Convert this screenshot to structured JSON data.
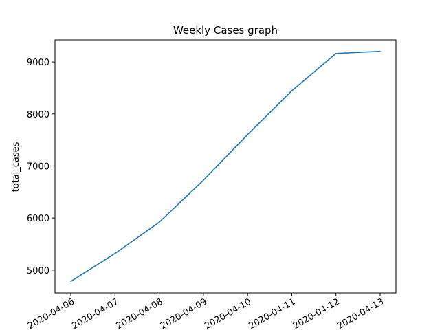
{
  "chart_data": {
    "type": "line",
    "title": "Weekly Cases graph",
    "xlabel": "",
    "ylabel": "total_cases",
    "x": [
      "2020-04-06",
      "2020-04-07",
      "2020-04-08",
      "2020-04-09",
      "2020-04-10",
      "2020-04-11",
      "2020-04-12",
      "2020-04-13"
    ],
    "series": [
      {
        "values": [
          4782,
          5318,
          5918,
          6725,
          7603,
          8445,
          9163,
          9203
        ],
        "color": "#1f77b4"
      }
    ],
    "yticks": [
      5000,
      6000,
      7000,
      8000,
      9000
    ],
    "ytick_labels": [
      "5000",
      "6000",
      "7000",
      "8000",
      "9000"
    ],
    "xtick_rotation": 30,
    "ylim": [
      4561,
      9424
    ],
    "grid": false,
    "legend": "none"
  }
}
